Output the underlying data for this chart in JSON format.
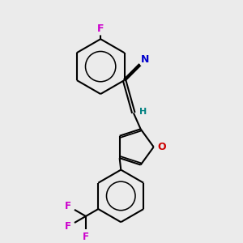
{
  "bg_color": "#ebebeb",
  "bond_color": "#000000",
  "atom_colors": {
    "F": "#cc00cc",
    "N": "#0000cc",
    "O": "#cc0000",
    "H": "#008080",
    "C": "#000000"
  },
  "line_width": 1.5,
  "figsize": [
    3.0,
    3.0
  ],
  "dpi": 100
}
